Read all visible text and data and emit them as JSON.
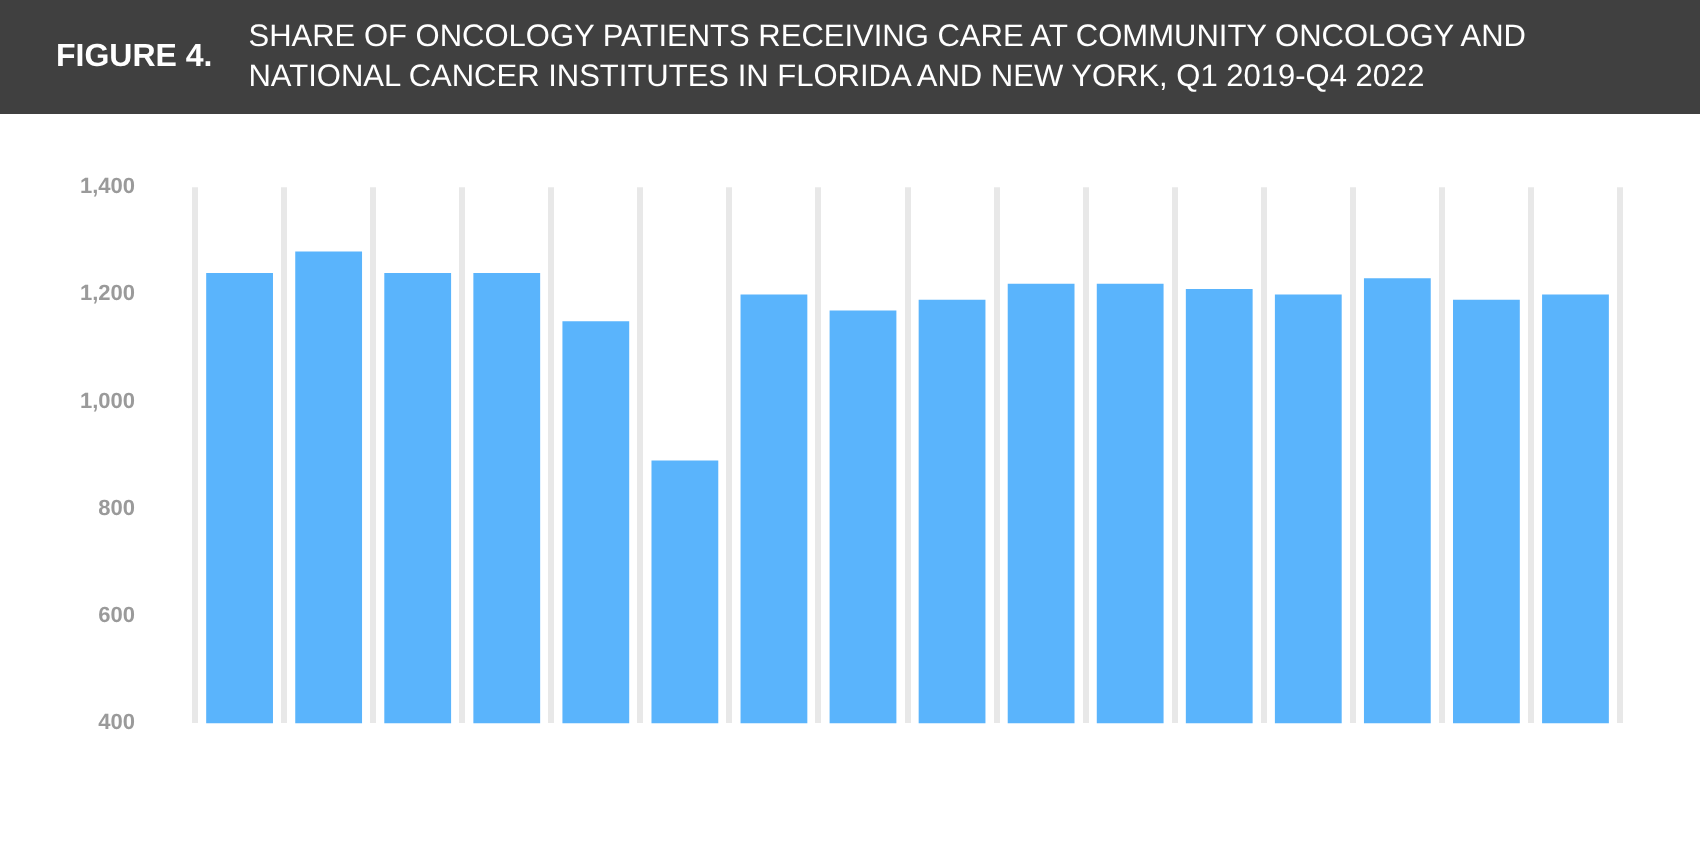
{
  "chart_data": {
    "type": "bar",
    "title": "SHARE OF ONCOLOGY PATIENTS RECEIVING CARE AT COMMUNITY ONCOLOGY AND NATIONAL CANCER INSTITUTES IN FLORIDA AND NEW YORK, Q1 2019-Q4 2022",
    "annotations": [
      "FIGURE 4."
    ],
    "categories": [
      null,
      null,
      null,
      null,
      null,
      null,
      null,
      null,
      null,
      null,
      null,
      null,
      null,
      null,
      null,
      null
    ],
    "values": [
      1240,
      1280,
      1240,
      1240,
      1150,
      890,
      1200,
      1170,
      1190,
      1220,
      1220,
      1210,
      1200,
      1230,
      1190,
      1200
    ],
    "color": "#5ab4fc",
    "ylim": [
      400,
      1400
    ],
    "yticks": [
      {
        "value": 400,
        "label": "400"
      },
      {
        "value": 600,
        "label": "600"
      },
      {
        "value": 800,
        "label": "800"
      },
      {
        "value": 1000,
        "label": "1,000"
      },
      {
        "value": 1200,
        "label": "1,200"
      },
      {
        "value": 1400,
        "label": "1,400"
      }
    ],
    "grid": "x"
  }
}
